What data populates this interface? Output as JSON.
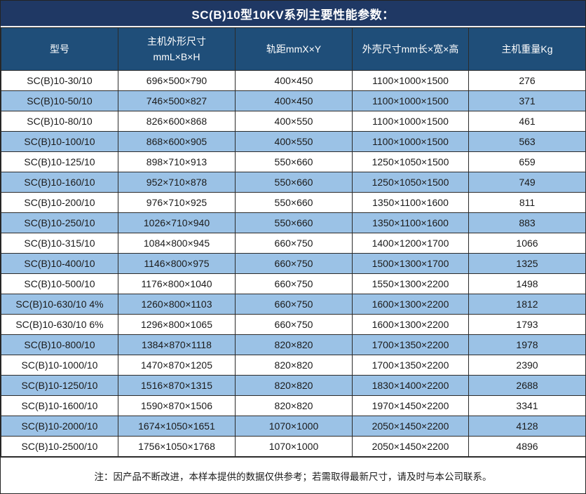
{
  "title": "SC(B)10型10KV系列主要性能参数：",
  "note": "注：因产品不断改进，本样本提供的数据仅供参考；若需取得最新尺寸，请及时与本公司联系。",
  "colors": {
    "title_bg": "#1F3864",
    "header_bg": "#1F4E79",
    "row_bg": "#FFFFFF",
    "row_alt_bg": "#9BC2E6",
    "border": "#2B2B2B",
    "header_text": "#FFFFFF",
    "body_text": "#1A1A1A"
  },
  "chart_data": {
    "type": "table",
    "title": "SC(B)10型10KV系列主要性能参数：",
    "columns": [
      "型号",
      "主机外形尺寸\nmmL×B×H",
      "轨距mmX×Y",
      "外壳尺寸mm长×宽×高",
      "主机重量Kg"
    ],
    "rows": [
      [
        "SC(B)10-30/10",
        "696×500×790",
        "400×450",
        "1100×1000×1500",
        "276"
      ],
      [
        "SC(B)10-50/10",
        "746×500×827",
        "400×450",
        "1100×1000×1500",
        "371"
      ],
      [
        "SC(B)10-80/10",
        "826×600×868",
        "400×550",
        "1100×1000×1500",
        "461"
      ],
      [
        "SC(B)10-100/10",
        "868×600×905",
        "400×550",
        "1100×1000×1500",
        "563"
      ],
      [
        "SC(B)10-125/10",
        "898×710×913",
        "550×660",
        "1250×1050×1500",
        "659"
      ],
      [
        "SC(B)10-160/10",
        "952×710×878",
        "550×660",
        "1250×1050×1500",
        "749"
      ],
      [
        "SC(B)10-200/10",
        "976×710×925",
        "550×660",
        "1350×1100×1600",
        "811"
      ],
      [
        "SC(B)10-250/10",
        "1026×710×940",
        "550×660",
        "1350×1100×1600",
        "883"
      ],
      [
        "SC(B)10-315/10",
        "1084×800×945",
        "660×750",
        "1400×1200×1700",
        "1066"
      ],
      [
        "SC(B)10-400/10",
        "1146×800×975",
        "660×750",
        "1500×1300×1700",
        "1325"
      ],
      [
        "SC(B)10-500/10",
        "1176×800×1040",
        "660×750",
        "1550×1300×2200",
        "1498"
      ],
      [
        "SC(B)10-630/10 4%",
        "1260×800×1103",
        "660×750",
        "1600×1300×2200",
        "1812"
      ],
      [
        "SC(B)10-630/10 6%",
        "1296×800×1065",
        "660×750",
        "1600×1300×2200",
        "1793"
      ],
      [
        "SC(B)10-800/10",
        "1384×870×1118",
        "820×820",
        "1700×1350×2200",
        "1978"
      ],
      [
        "SC(B)10-1000/10",
        "1470×870×1205",
        "820×820",
        "1700×1350×2200",
        "2390"
      ],
      [
        "SC(B)10-1250/10",
        "1516×870×1315",
        "820×820",
        "1830×1400×2200",
        "2688"
      ],
      [
        "SC(B)10-1600/10",
        "1590×870×1506",
        "820×820",
        "1970×1450×2200",
        "3341"
      ],
      [
        "SC(B)10-2000/10",
        "1674×1050×1651",
        "1070×1000",
        "2050×1450×2200",
        "4128"
      ],
      [
        "SC(B)10-2500/10",
        "1756×1050×1768",
        "1070×1000",
        "2050×1450×2200",
        "4896"
      ]
    ],
    "note": "注：因产品不断改进，本样本提供的数据仅供参考；若需取得最新尺寸，请及时与本公司联系。",
    "layout": {
      "grid": true,
      "alternating_row_shading": true,
      "header_position": "top"
    }
  }
}
